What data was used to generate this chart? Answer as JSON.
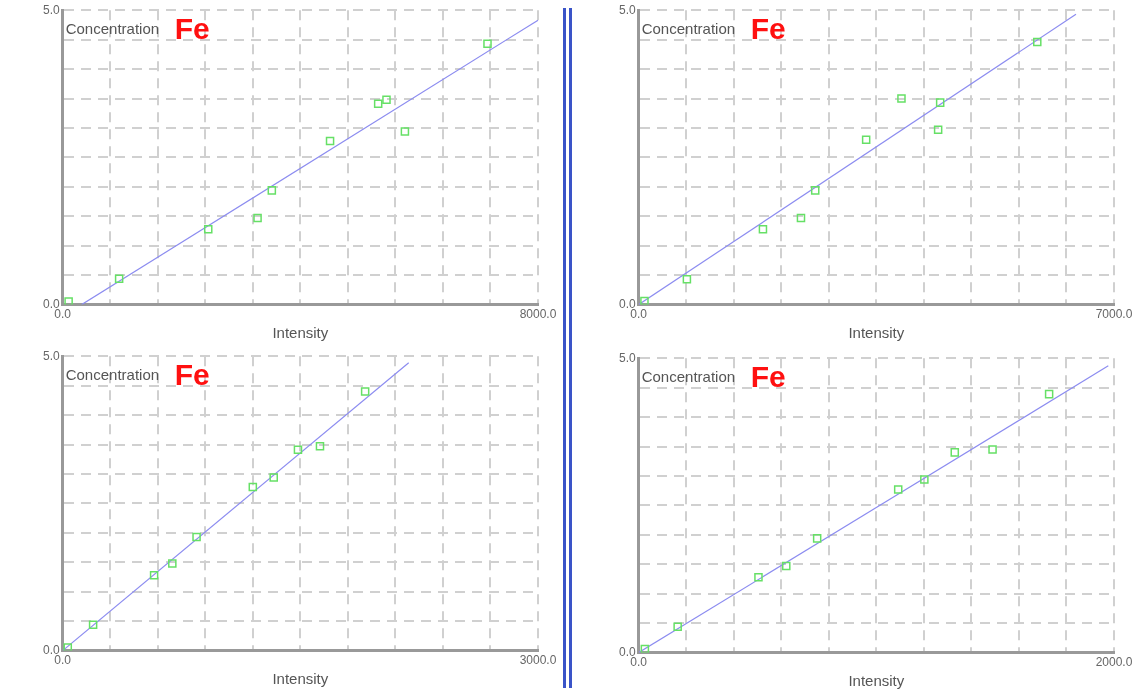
{
  "chart_data": [
    {
      "type": "scatter",
      "title": "Fe",
      "xlabel": "Intensity",
      "ylabel": "Concentration",
      "grid": true,
      "marker": "square",
      "xlim": [
        0,
        8000
      ],
      "ylim": [
        0,
        5
      ],
      "xticks": [
        {
          "value": 0,
          "label": "0.0"
        },
        {
          "value": 800,
          "label": null
        },
        {
          "value": 1600,
          "label": null
        },
        {
          "value": 2400,
          "label": null
        },
        {
          "value": 3200,
          "label": null
        },
        {
          "value": 4000,
          "label": null
        },
        {
          "value": 4800,
          "label": null
        },
        {
          "value": 5600,
          "label": null
        },
        {
          "value": 6400,
          "label": null
        },
        {
          "value": 7200,
          "label": null
        },
        {
          "value": 8000,
          "label": "8000.0"
        }
      ],
      "yticks": [
        {
          "value": 0,
          "label": "0.0"
        },
        {
          "value": 0.5,
          "label": null
        },
        {
          "value": 1,
          "label": null
        },
        {
          "value": 1.5,
          "label": null
        },
        {
          "value": 2,
          "label": null
        },
        {
          "value": 2.5,
          "label": null
        },
        {
          "value": 3,
          "label": null
        },
        {
          "value": 3.5,
          "label": null
        },
        {
          "value": 4,
          "label": null
        },
        {
          "value": 4.5,
          "label": null
        },
        {
          "value": 5,
          "label": "5.0"
        }
      ],
      "series": [
        {
          "color": "#66e066",
          "x": [
            100,
            950,
            2450,
            3280,
            3520,
            4500,
            5310,
            5450,
            5760,
            7150
          ],
          "values": [
            0.05,
            0.44,
            1.28,
            1.47,
            1.94,
            2.78,
            3.41,
            3.48,
            2.94,
            4.43
          ]
        },
        {
          "type": "line",
          "marker": "none",
          "color": "#8c8cf0",
          "x": [
            320,
            8000
          ],
          "values": [
            0,
            4.83
          ]
        }
      ]
    },
    {
      "type": "scatter",
      "title": "Fe",
      "xlabel": "Intensity",
      "ylabel": "Concentration",
      "grid": true,
      "marker": "square",
      "xlim": [
        0,
        7000
      ],
      "ylim": [
        0,
        5
      ],
      "xticks": [
        {
          "value": 0,
          "label": "0.0"
        },
        {
          "value": 700,
          "label": null
        },
        {
          "value": 1400,
          "label": null
        },
        {
          "value": 2100,
          "label": null
        },
        {
          "value": 2800,
          "label": null
        },
        {
          "value": 3500,
          "label": null
        },
        {
          "value": 4200,
          "label": null
        },
        {
          "value": 4900,
          "label": null
        },
        {
          "value": 5600,
          "label": null
        },
        {
          "value": 6300,
          "label": null
        },
        {
          "value": 7000,
          "label": "7000.0"
        }
      ],
      "yticks": [
        {
          "value": 0,
          "label": "0.0"
        },
        {
          "value": 0.5,
          "label": null
        },
        {
          "value": 1,
          "label": null
        },
        {
          "value": 1.5,
          "label": null
        },
        {
          "value": 2,
          "label": null
        },
        {
          "value": 2.5,
          "label": null
        },
        {
          "value": 3,
          "label": null
        },
        {
          "value": 3.5,
          "label": null
        },
        {
          "value": 4,
          "label": null
        },
        {
          "value": 4.5,
          "label": null
        },
        {
          "value": 5,
          "label": "5.0"
        }
      ],
      "series": [
        {
          "color": "#66e066",
          "x": [
            85,
            710,
            1830,
            2390,
            2600,
            3350,
            3870,
            4440,
            4410,
            5870
          ],
          "values": [
            0.06,
            0.43,
            1.28,
            1.47,
            1.94,
            2.8,
            3.5,
            3.43,
            2.97,
            4.46
          ]
        },
        {
          "type": "line",
          "marker": "none",
          "color": "#8c8cf0",
          "x": [
            0,
            6440
          ],
          "values": [
            0,
            4.93
          ]
        }
      ]
    },
    {
      "type": "scatter",
      "title": "Fe",
      "xlabel": "Intensity",
      "ylabel": "Concentration",
      "grid": true,
      "marker": "square",
      "xlim": [
        0,
        3000
      ],
      "ylim": [
        0,
        5
      ],
      "xticks": [
        {
          "value": 0,
          "label": "0.0"
        },
        {
          "value": 300,
          "label": null
        },
        {
          "value": 600,
          "label": null
        },
        {
          "value": 900,
          "label": null
        },
        {
          "value": 1200,
          "label": null
        },
        {
          "value": 1500,
          "label": null
        },
        {
          "value": 1800,
          "label": null
        },
        {
          "value": 2100,
          "label": null
        },
        {
          "value": 2400,
          "label": null
        },
        {
          "value": 2700,
          "label": null
        },
        {
          "value": 3000,
          "label": "3000.0"
        }
      ],
      "yticks": [
        {
          "value": 0,
          "label": "0.0"
        },
        {
          "value": 0.5,
          "label": null
        },
        {
          "value": 1,
          "label": null
        },
        {
          "value": 1.5,
          "label": null
        },
        {
          "value": 2,
          "label": null
        },
        {
          "value": 2.5,
          "label": null
        },
        {
          "value": 3,
          "label": null
        },
        {
          "value": 3.5,
          "label": null
        },
        {
          "value": 4,
          "label": null
        },
        {
          "value": 4.5,
          "label": null
        },
        {
          "value": 5,
          "label": "5.0"
        }
      ],
      "series": [
        {
          "color": "#66e066",
          "x": [
            32,
            192,
            577,
            692,
            845,
            1200,
            1332,
            1485,
            1624,
            1909
          ],
          "values": [
            0.05,
            0.44,
            1.28,
            1.48,
            1.93,
            2.78,
            2.94,
            3.41,
            3.47,
            4.4
          ]
        },
        {
          "type": "line",
          "marker": "none",
          "color": "#8c8cf0",
          "x": [
            0,
            2184
          ],
          "values": [
            0,
            4.89
          ]
        }
      ]
    },
    {
      "type": "scatter",
      "title": "Fe",
      "xlabel": "Intensity",
      "ylabel": "Concentration",
      "grid": true,
      "marker": "square",
      "xlim": [
        0,
        2000
      ],
      "ylim": [
        0,
        5
      ],
      "xticks": [
        {
          "value": 0,
          "label": "0.0"
        },
        {
          "value": 200,
          "label": null
        },
        {
          "value": 400,
          "label": null
        },
        {
          "value": 600,
          "label": null
        },
        {
          "value": 800,
          "label": null
        },
        {
          "value": 1000,
          "label": null
        },
        {
          "value": 1200,
          "label": null
        },
        {
          "value": 1400,
          "label": null
        },
        {
          "value": 1600,
          "label": null
        },
        {
          "value": 1800,
          "label": null
        },
        {
          "value": 2000,
          "label": "2000.0"
        }
      ],
      "yticks": [
        {
          "value": 0,
          "label": "0.0"
        },
        {
          "value": 0.5,
          "label": null
        },
        {
          "value": 1,
          "label": null
        },
        {
          "value": 1.5,
          "label": null
        },
        {
          "value": 2,
          "label": null
        },
        {
          "value": 2.5,
          "label": null
        },
        {
          "value": 3,
          "label": null
        },
        {
          "value": 3.5,
          "label": null
        },
        {
          "value": 4,
          "label": null
        },
        {
          "value": 4.5,
          "label": null
        },
        {
          "value": 5,
          "label": "5.0"
        }
      ],
      "series": [
        {
          "color": "#66e066",
          "x": [
            26,
            164,
            504,
            621,
            751,
            1092,
            1202,
            1330,
            1489,
            1727
          ],
          "values": [
            0.06,
            0.44,
            1.28,
            1.47,
            1.94,
            2.77,
            2.94,
            3.4,
            3.45,
            4.39
          ]
        },
        {
          "type": "line",
          "marker": "none",
          "color": "#8c8cf0",
          "x": [
            0,
            1976
          ],
          "values": [
            0,
            4.87
          ]
        }
      ]
    }
  ]
}
